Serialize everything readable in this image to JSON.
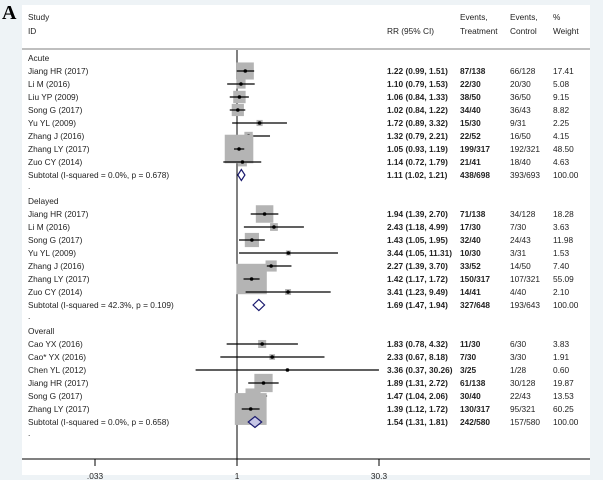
{
  "panel_label": "A",
  "chart_data": {
    "type": "forest",
    "scale": "log",
    "null_value": 1,
    "x_ticks": [
      {
        "value": 0.033,
        "label": ".033"
      },
      {
        "value": 1,
        "label": "1"
      },
      {
        "value": 30.3,
        "label": "30.3"
      }
    ],
    "xlim": [
      0.033,
      30.3
    ],
    "headers": {
      "study": "Study",
      "id": "ID",
      "rr": "RR (95% CI)",
      "treat1": "Events,",
      "treat2": "Treatment",
      "ctrl1": "Events,",
      "ctrl2": "Control",
      "weight1": "%",
      "weight2": "Weight"
    },
    "colors": {
      "box": "#b4b4b4",
      "diamond_stroke": "#1a1a6e",
      "diamond_fill_default": "#ffffff",
      "diamond_fill_overall": "#c6c6e6"
    },
    "groups": [
      {
        "label": "Acute",
        "studies": [
          {
            "name": "Jiang HR (2017)",
            "rr": 1.22,
            "lo": 0.99,
            "hi": 1.51,
            "rr_text": "1.22 (0.99, 1.51)",
            "treatment": "87/138",
            "control": "66/128",
            "weight": "17.41"
          },
          {
            "name": "Li M (2016)",
            "rr": 1.1,
            "lo": 0.79,
            "hi": 1.53,
            "rr_text": "1.10 (0.79, 1.53)",
            "treatment": "22/30",
            "control": "20/30",
            "weight": "5.08"
          },
          {
            "name": "Liu YP (2009)",
            "rr": 1.06,
            "lo": 0.84,
            "hi": 1.33,
            "rr_text": "1.06 (0.84, 1.33)",
            "treatment": "38/50",
            "control": "36/50",
            "weight": "9.15"
          },
          {
            "name": "Song G (2017)",
            "rr": 1.02,
            "lo": 0.84,
            "hi": 1.22,
            "rr_text": "1.02 (0.84, 1.22)",
            "treatment": "34/40",
            "control": "36/43",
            "weight": "8.82"
          },
          {
            "name": "Yu YL (2009)",
            "rr": 1.72,
            "lo": 0.89,
            "hi": 3.32,
            "rr_text": "1.72 (0.89, 3.32)",
            "treatment": "15/30",
            "control": "9/31",
            "weight": "2.25"
          },
          {
            "name": "Zhang J (2016)",
            "rr": 1.32,
            "lo": 0.79,
            "hi": 2.21,
            "rr_text": "1.32 (0.79, 2.21)",
            "treatment": "22/52",
            "control": "16/50",
            "weight": "4.15"
          },
          {
            "name": "Zhang LY (2017)",
            "rr": 1.05,
            "lo": 0.93,
            "hi": 1.19,
            "rr_text": "1.05 (0.93, 1.19)",
            "treatment": "199/317",
            "control": "192/321",
            "weight": "48.50"
          },
          {
            "name": "Zuo CY (2014)",
            "rr": 1.14,
            "lo": 0.72,
            "hi": 1.79,
            "rr_text": "1.14 (0.72, 1.79)",
            "treatment": "21/41",
            "control": "18/40",
            "weight": "4.63"
          }
        ],
        "subtotal": {
          "label": "Subtotal  (I-squared = 0.0%, p = 0.678)",
          "rr": 1.11,
          "lo": 1.02,
          "hi": 1.21,
          "rr_text": "1.11 (1.02, 1.21)",
          "treatment": "438/698",
          "control": "393/693",
          "weight": "100.00",
          "fill": "#ffffff"
        }
      },
      {
        "label": "Delayed",
        "studies": [
          {
            "name": "Jiang HR (2017)",
            "rr": 1.94,
            "lo": 1.39,
            "hi": 2.7,
            "rr_text": "1.94 (1.39, 2.70)",
            "treatment": "71/138",
            "control": "34/128",
            "weight": "18.28"
          },
          {
            "name": "Li M (2016)",
            "rr": 2.43,
            "lo": 1.18,
            "hi": 4.99,
            "rr_text": "2.43 (1.18, 4.99)",
            "treatment": "17/30",
            "control": "7/30",
            "weight": "3.63"
          },
          {
            "name": "Song G (2017)",
            "rr": 1.43,
            "lo": 1.05,
            "hi": 1.95,
            "rr_text": "1.43 (1.05, 1.95)",
            "treatment": "32/40",
            "control": "24/43",
            "weight": "11.98"
          },
          {
            "name": "Yu YL (2009)",
            "rr": 3.44,
            "lo": 1.05,
            "hi": 11.31,
            "rr_text": "3.44 (1.05, 11.31)",
            "treatment": "10/30",
            "control": "3/31",
            "weight": "1.53"
          },
          {
            "name": "Zhang J (2016)",
            "rr": 2.27,
            "lo": 1.39,
            "hi": 3.7,
            "rr_text": "2.27 (1.39, 3.70)",
            "treatment": "33/52",
            "control": "14/50",
            "weight": "7.40"
          },
          {
            "name": "Zhang LY (2017)",
            "rr": 1.42,
            "lo": 1.17,
            "hi": 1.72,
            "rr_text": "1.42 (1.17, 1.72)",
            "treatment": "150/317",
            "control": "107/321",
            "weight": "55.09"
          },
          {
            "name": "Zuo CY (2014)",
            "rr": 3.41,
            "lo": 1.23,
            "hi": 9.49,
            "rr_text": "3.41 (1.23, 9.49)",
            "treatment": "14/41",
            "control": "4/40",
            "weight": "2.10"
          }
        ],
        "subtotal": {
          "label": "Subtotal  (I-squared = 42.3%, p = 0.109)",
          "rr": 1.69,
          "lo": 1.47,
          "hi": 1.94,
          "rr_text": "1.69 (1.47, 1.94)",
          "treatment": "327/648",
          "control": "193/643",
          "weight": "100.00",
          "fill": "#ffffff"
        }
      },
      {
        "label": "Overall",
        "studies": [
          {
            "name": "Cao YX (2016)",
            "rr": 1.83,
            "lo": 0.78,
            "hi": 4.32,
            "rr_text": "1.83 (0.78, 4.32)",
            "treatment": "11/30",
            "control": "6/30",
            "weight": "3.83"
          },
          {
            "name": "Cao* YX (2016)",
            "rr": 2.33,
            "lo": 0.67,
            "hi": 8.18,
            "rr_text": "2.33 (0.67, 8.18)",
            "treatment": "7/30",
            "control": "3/30",
            "weight": "1.91"
          },
          {
            "name": "Chen YL (2012)",
            "rr": 3.36,
            "lo": 0.37,
            "hi": 30.26,
            "rr_text": "3.36 (0.37, 30.26)",
            "treatment": "3/25",
            "control": "1/28",
            "weight": "0.60"
          },
          {
            "name": "Jiang HR (2017)",
            "rr": 1.89,
            "lo": 1.31,
            "hi": 2.72,
            "rr_text": "1.89 (1.31, 2.72)",
            "treatment": "61/138",
            "control": "30/128",
            "weight": "19.87"
          },
          {
            "name": "Song G (2017)",
            "rr": 1.47,
            "lo": 1.04,
            "hi": 2.06,
            "rr_text": "1.47 (1.04, 2.06)",
            "treatment": "30/40",
            "control": "22/43",
            "weight": "13.53"
          },
          {
            "name": "Zhang LY (2017)",
            "rr": 1.39,
            "lo": 1.12,
            "hi": 1.72,
            "rr_text": "1.39 (1.12, 1.72)",
            "treatment": "130/317",
            "control": "95/321",
            "weight": "60.25"
          }
        ],
        "subtotal": {
          "label": "Subtotal  (I-squared = 0.0%, p = 0.658)",
          "rr": 1.54,
          "lo": 1.31,
          "hi": 1.81,
          "rr_text": "1.54 (1.31, 1.81)",
          "treatment": "242/580",
          "control": "157/580",
          "weight": "100.00",
          "fill": "#c6c6e6"
        }
      }
    ],
    "separator_text": "."
  }
}
